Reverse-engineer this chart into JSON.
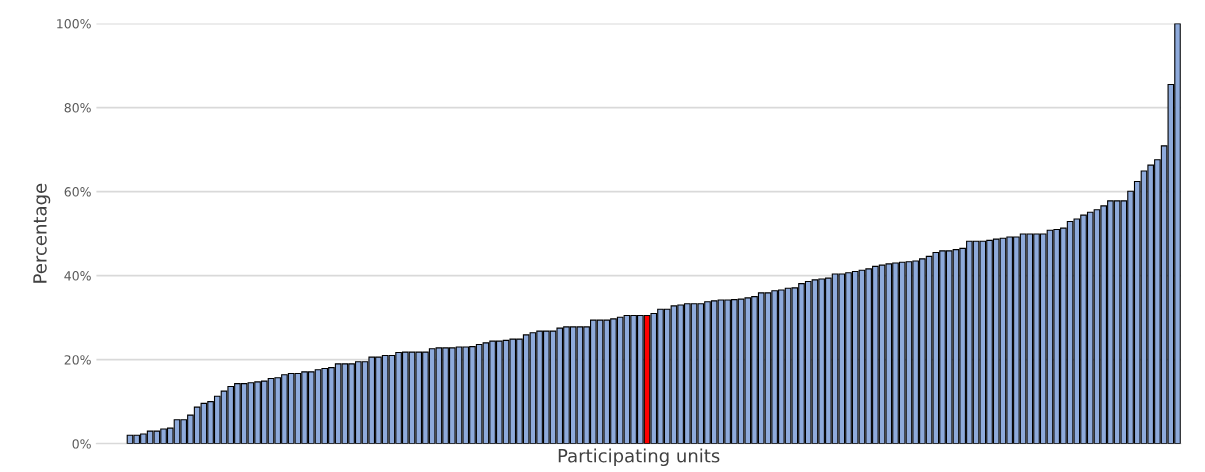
{
  "chart_data": {
    "type": "bar",
    "xlabel": "Participating units",
    "ylabel": "Percentage",
    "categories": [
      null,
      null,
      null,
      null,
      null,
      null,
      null,
      null,
      null,
      null,
      null,
      null,
      null,
      null,
      null,
      null,
      null,
      null,
      null,
      null,
      null,
      null,
      null,
      null,
      null,
      null,
      null,
      null,
      null,
      null,
      null,
      null,
      null,
      null,
      null,
      null,
      null,
      null,
      null,
      null,
      null,
      null,
      null,
      null,
      null,
      null,
      null,
      null,
      null,
      null,
      null,
      null,
      null,
      null,
      null,
      null,
      null,
      null,
      null,
      null,
      null,
      null,
      null,
      null,
      null,
      null,
      null,
      null,
      null,
      null,
      null,
      null,
      null,
      null,
      null,
      null,
      null,
      null,
      null,
      null,
      null,
      null,
      null,
      null,
      null,
      null,
      null,
      null,
      null,
      null,
      null,
      null,
      null,
      null,
      null,
      null,
      null,
      null,
      null,
      null,
      null,
      null,
      null,
      null,
      null,
      null,
      null,
      null,
      null,
      null,
      null,
      null,
      null,
      null,
      null,
      null,
      null,
      null,
      null,
      null,
      null,
      null,
      null,
      null,
      null,
      null,
      null,
      null,
      null,
      null,
      null,
      null,
      null,
      null,
      null,
      null,
      null,
      null,
      null,
      null,
      null,
      null,
      null,
      null,
      null,
      null,
      null,
      null,
      null,
      null,
      null,
      null,
      null,
      null,
      null,
      null,
      null
    ],
    "values": [
      2.0,
      2.0,
      2.3,
      3.0,
      3.0,
      3.5,
      3.7,
      5.7,
      5.7,
      6.8,
      8.7,
      9.6,
      10.0,
      11.3,
      12.5,
      13.6,
      14.3,
      14.3,
      14.5,
      14.7,
      14.9,
      15.5,
      15.7,
      16.4,
      16.7,
      16.7,
      17.1,
      17.1,
      17.6,
      17.9,
      18.1,
      19.0,
      19.0,
      19.0,
      19.5,
      19.5,
      20.6,
      20.6,
      21.0,
      21.0,
      21.7,
      21.8,
      21.8,
      21.8,
      21.8,
      22.6,
      22.8,
      22.8,
      22.8,
      23.0,
      23.0,
      23.1,
      23.6,
      24.0,
      24.4,
      24.4,
      24.6,
      24.9,
      24.9,
      25.9,
      26.4,
      26.8,
      26.8,
      26.8,
      27.5,
      27.8,
      27.8,
      27.8,
      27.8,
      29.4,
      29.4,
      29.4,
      29.7,
      30.1,
      30.5,
      30.5,
      30.5,
      30.5,
      31.0,
      32.0,
      32.0,
      32.8,
      33.0,
      33.3,
      33.3,
      33.3,
      33.8,
      34.0,
      34.2,
      34.2,
      34.3,
      34.4,
      34.7,
      35.0,
      35.9,
      35.9,
      36.4,
      36.6,
      37.0,
      37.1,
      38.1,
      38.6,
      39.0,
      39.2,
      39.4,
      40.4,
      40.4,
      40.7,
      41.0,
      41.3,
      41.6,
      42.2,
      42.5,
      42.8,
      43.0,
      43.2,
      43.3,
      43.5,
      44.0,
      44.6,
      45.5,
      45.9,
      45.9,
      46.2,
      46.5,
      48.2,
      48.2,
      48.2,
      48.4,
      48.7,
      48.9,
      49.2,
      49.2,
      49.9,
      49.9,
      49.9,
      49.9,
      50.8,
      51.0,
      51.3,
      52.9,
      53.5,
      54.4,
      55.1,
      55.7,
      56.6,
      57.8,
      57.8,
      57.8,
      60.1,
      62.4,
      64.9,
      66.3,
      67.6,
      70.9,
      85.5,
      100
    ],
    "colors": [
      "#8eaadb",
      "#8eaadb",
      "#8eaadb",
      "#8eaadb",
      "#8eaadb",
      "#8eaadb",
      "#8eaadb",
      "#8eaadb",
      "#8eaadb",
      "#8eaadb",
      "#8eaadb",
      "#8eaadb",
      "#8eaadb",
      "#8eaadb",
      "#8eaadb",
      "#8eaadb",
      "#8eaadb",
      "#8eaadb",
      "#8eaadb",
      "#8eaadb",
      "#8eaadb",
      "#8eaadb",
      "#8eaadb",
      "#8eaadb",
      "#8eaadb",
      "#8eaadb",
      "#8eaadb",
      "#8eaadb",
      "#8eaadb",
      "#8eaadb",
      "#8eaadb",
      "#8eaadb",
      "#8eaadb",
      "#8eaadb",
      "#8eaadb",
      "#8eaadb",
      "#8eaadb",
      "#8eaadb",
      "#8eaadb",
      "#8eaadb",
      "#8eaadb",
      "#8eaadb",
      "#8eaadb",
      "#8eaadb",
      "#8eaadb",
      "#8eaadb",
      "#8eaadb",
      "#8eaadb",
      "#8eaadb",
      "#8eaadb",
      "#8eaadb",
      "#8eaadb",
      "#8eaadb",
      "#8eaadb",
      "#8eaadb",
      "#8eaadb",
      "#8eaadb",
      "#8eaadb",
      "#8eaadb",
      "#8eaadb",
      "#8eaadb",
      "#8eaadb",
      "#8eaadb",
      "#8eaadb",
      "#8eaadb",
      "#8eaadb",
      "#8eaadb",
      "#8eaadb",
      "#8eaadb",
      "#8eaadb",
      "#8eaadb",
      "#8eaadb",
      "#8eaadb",
      "#8eaadb",
      "#8eaadb",
      "#8eaadb",
      "#8eaadb",
      "#ff0000",
      "#8eaadb",
      "#8eaadb",
      "#8eaadb",
      "#8eaadb",
      "#8eaadb",
      "#8eaadb",
      "#8eaadb",
      "#8eaadb",
      "#8eaadb",
      "#8eaadb",
      "#8eaadb",
      "#8eaadb",
      "#8eaadb",
      "#8eaadb",
      "#8eaadb",
      "#8eaadb",
      "#8eaadb",
      "#8eaadb",
      "#8eaadb",
      "#8eaadb",
      "#8eaadb",
      "#8eaadb",
      "#8eaadb",
      "#8eaadb",
      "#8eaadb",
      "#8eaadb",
      "#8eaadb",
      "#8eaadb",
      "#8eaadb",
      "#8eaadb",
      "#8eaadb",
      "#8eaadb",
      "#8eaadb",
      "#8eaadb",
      "#8eaadb",
      "#8eaadb",
      "#8eaadb",
      "#8eaadb",
      "#8eaadb",
      "#8eaadb",
      "#8eaadb",
      "#8eaadb",
      "#8eaadb",
      "#8eaadb",
      "#8eaadb",
      "#8eaadb",
      "#8eaadb",
      "#8eaadb",
      "#8eaadb",
      "#8eaadb",
      "#8eaadb",
      "#8eaadb",
      "#8eaadb",
      "#8eaadb",
      "#8eaadb",
      "#8eaadb",
      "#8eaadb",
      "#8eaadb",
      "#8eaadb",
      "#8eaadb",
      "#8eaadb",
      "#8eaadb",
      "#8eaadb",
      "#8eaadb",
      "#8eaadb",
      "#8eaadb",
      "#8eaadb",
      "#8eaadb",
      "#8eaadb",
      "#8eaadb",
      "#8eaadb",
      "#8eaadb",
      "#8eaadb",
      "#8eaadb",
      "#8eaadb",
      "#8eaadb",
      "#8eaadb",
      "#8eaadb",
      "#8eaadb"
    ],
    "ylim": [
      0,
      100
    ],
    "yticks": [
      {
        "value": 0,
        "label": "0%"
      },
      {
        "value": 20,
        "label": "20%"
      },
      {
        "value": 40,
        "label": "40%"
      },
      {
        "value": 60,
        "label": "60%"
      },
      {
        "value": 80,
        "label": "80%"
      },
      {
        "value": 100,
        "label": "100%"
      }
    ],
    "grid": "y"
  }
}
